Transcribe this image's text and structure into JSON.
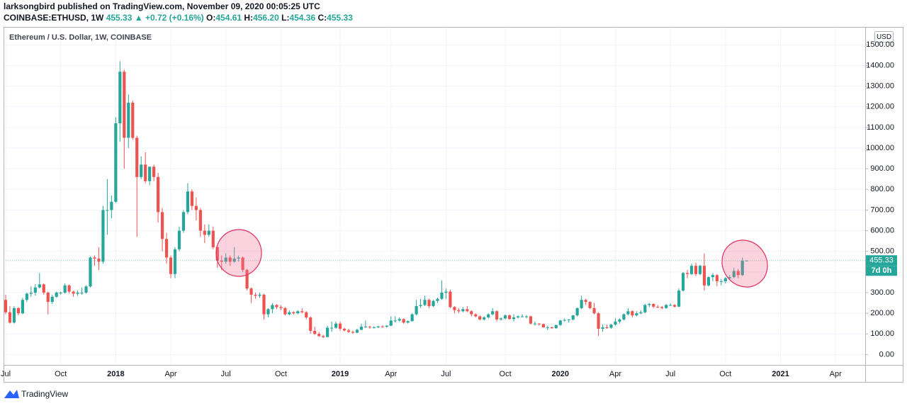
{
  "header": {
    "byline": "larksongbird published on TradingView.com, November 09, 2020 00:05:25 UTC",
    "symbol": "COINBASE:ETHUSD, 1W",
    "price": "455.33",
    "change": "▲ +0.72 (+0.16%)",
    "ohlc_labels": [
      "O:",
      "H:",
      "L:",
      "C:"
    ],
    "ohlc_values": [
      "454.61",
      "456.20",
      "454.36",
      "455.33"
    ]
  },
  "footer": {
    "brand": "TradingView"
  },
  "chart_data": {
    "type": "candlestick",
    "title": "Ethereum / U.S. Dollar, 1W, COINBASE",
    "currency": "USD",
    "countdown": "7d 0h",
    "up_color": "#26a69a",
    "down_color": "#ef5350",
    "grid": true,
    "ylim": [
      -50,
      1580
    ],
    "yticks": [
      {
        "value": 0,
        "label": "0.00"
      },
      {
        "value": 100,
        "label": "100.00"
      },
      {
        "value": 200,
        "label": "200.00"
      },
      {
        "value": 300,
        "label": "300.00"
      },
      {
        "value": 400,
        "label": "400.00"
      },
      {
        "value": 500,
        "label": "500.00"
      },
      {
        "value": 600,
        "label": "600.00"
      },
      {
        "value": 700,
        "label": "700.00"
      },
      {
        "value": 800,
        "label": "800.00"
      },
      {
        "value": 900,
        "label": "900.00"
      },
      {
        "value": 1000,
        "label": "1000.00"
      },
      {
        "value": 1100,
        "label": "1100.00"
      },
      {
        "value": 1200,
        "label": "1200.00"
      },
      {
        "value": 1300,
        "label": "1300.00"
      },
      {
        "value": 1400,
        "label": "1400.00"
      },
      {
        "value": 1500,
        "label": "1500.00"
      }
    ],
    "xlim": [
      -0.5,
      203
    ],
    "xticks": [
      {
        "value": 0,
        "label": "Jul"
      },
      {
        "value": 13,
        "label": "Oct"
      },
      {
        "value": 26,
        "label": "2018"
      },
      {
        "value": 39,
        "label": "Apr"
      },
      {
        "value": 52,
        "label": "Jul"
      },
      {
        "value": 65,
        "label": "Oct"
      },
      {
        "value": 79,
        "label": "2019"
      },
      {
        "value": 91,
        "label": "Apr"
      },
      {
        "value": 104,
        "label": "Jul"
      },
      {
        "value": 118,
        "label": "Oct"
      },
      {
        "value": 131,
        "label": "2020"
      },
      {
        "value": 144,
        "label": "Apr"
      },
      {
        "value": 157,
        "label": "Jul"
      },
      {
        "value": 170,
        "label": "Oct"
      },
      {
        "value": 183,
        "label": "2021"
      },
      {
        "value": 196,
        "label": "Apr"
      }
    ],
    "ohlc": [
      [
        265,
        290,
        195,
        205
      ],
      [
        205,
        235,
        150,
        155
      ],
      [
        155,
        235,
        150,
        225
      ],
      [
        225,
        230,
        190,
        200
      ],
      [
        200,
        275,
        195,
        265
      ],
      [
        265,
        300,
        255,
        295
      ],
      [
        295,
        330,
        280,
        300
      ],
      [
        300,
        340,
        285,
        325
      ],
      [
        325,
        395,
        320,
        340
      ],
      [
        340,
        345,
        290,
        300
      ],
      [
        300,
        305,
        195,
        255
      ],
      [
        255,
        290,
        245,
        280
      ],
      [
        280,
        305,
        275,
        300
      ],
      [
        300,
        305,
        290,
        300
      ],
      [
        300,
        345,
        295,
        335
      ],
      [
        335,
        340,
        295,
        305
      ],
      [
        305,
        310,
        280,
        295
      ],
      [
        295,
        310,
        285,
        300
      ],
      [
        300,
        325,
        290,
        300
      ],
      [
        300,
        335,
        295,
        330
      ],
      [
        330,
        475,
        325,
        470
      ],
      [
        470,
        480,
        430,
        465
      ],
      [
        465,
        520,
        410,
        450
      ],
      [
        450,
        720,
        440,
        700
      ],
      [
        700,
        850,
        580,
        700
      ],
      [
        700,
        770,
        660,
        740
      ],
      [
        740,
        1150,
        735,
        1120
      ],
      [
        1120,
        1420,
        1030,
        1370
      ],
      [
        1370,
        1380,
        900,
        1050
      ],
      [
        1050,
        1260,
        1000,
        1220
      ],
      [
        1220,
        1230,
        1040,
        1050
      ],
      [
        1050,
        1060,
        570,
        860
      ],
      [
        860,
        960,
        850,
        920
      ],
      [
        920,
        980,
        830,
        840
      ],
      [
        840,
        900,
        820,
        910
      ],
      [
        910,
        920,
        840,
        860
      ],
      [
        860,
        880,
        640,
        690
      ],
      [
        690,
        710,
        500,
        560
      ],
      [
        560,
        590,
        440,
        470
      ],
      [
        470,
        480,
        370,
        390
      ],
      [
        390,
        520,
        370,
        510
      ],
      [
        510,
        620,
        500,
        600
      ],
      [
        600,
        700,
        590,
        690
      ],
      [
        690,
        830,
        680,
        790
      ],
      [
        790,
        800,
        700,
        720
      ],
      [
        720,
        760,
        650,
        700
      ],
      [
        700,
        710,
        570,
        600
      ],
      [
        600,
        630,
        540,
        580
      ],
      [
        580,
        630,
        570,
        600
      ],
      [
        600,
        620,
        510,
        520
      ],
      [
        520,
        525,
        420,
        455
      ],
      [
        455,
        480,
        410,
        450
      ],
      [
        450,
        490,
        440,
        470
      ],
      [
        470,
        480,
        430,
        450
      ],
      [
        450,
        520,
        445,
        465
      ],
      [
        465,
        480,
        450,
        470
      ],
      [
        470,
        475,
        400,
        410
      ],
      [
        410,
        415,
        310,
        320
      ],
      [
        320,
        325,
        250,
        290
      ],
      [
        290,
        300,
        270,
        285
      ],
      [
        285,
        300,
        275,
        290
      ],
      [
        290,
        295,
        170,
        195
      ],
      [
        195,
        225,
        180,
        220
      ],
      [
        220,
        250,
        200,
        240
      ],
      [
        240,
        245,
        220,
        230
      ],
      [
        230,
        240,
        215,
        225
      ],
      [
        225,
        230,
        190,
        195
      ],
      [
        195,
        215,
        190,
        205
      ],
      [
        205,
        210,
        195,
        200
      ],
      [
        200,
        215,
        195,
        210
      ],
      [
        210,
        225,
        200,
        205
      ],
      [
        205,
        210,
        170,
        180
      ],
      [
        180,
        185,
        100,
        115
      ],
      [
        115,
        135,
        95,
        100
      ],
      [
        100,
        110,
        85,
        90
      ],
      [
        90,
        95,
        80,
        85
      ],
      [
        85,
        140,
        84,
        130
      ],
      [
        130,
        160,
        110,
        130
      ],
      [
        130,
        160,
        125,
        150
      ],
      [
        150,
        160,
        115,
        125
      ],
      [
        125,
        130,
        112,
        117
      ],
      [
        117,
        125,
        105,
        110
      ],
      [
        110,
        115,
        100,
        106
      ],
      [
        106,
        125,
        104,
        120
      ],
      [
        120,
        150,
        118,
        135
      ],
      [
        135,
        165,
        130,
        135
      ],
      [
        135,
        140,
        125,
        132
      ],
      [
        132,
        138,
        126,
        132
      ],
      [
        132,
        140,
        128,
        136
      ],
      [
        136,
        142,
        130,
        135
      ],
      [
        135,
        142,
        130,
        140
      ],
      [
        140,
        185,
        138,
        165
      ],
      [
        165,
        185,
        155,
        165
      ],
      [
        165,
        180,
        160,
        172
      ],
      [
        172,
        175,
        150,
        155
      ],
      [
        155,
        165,
        150,
        162
      ],
      [
        162,
        200,
        160,
        195
      ],
      [
        195,
        265,
        190,
        235
      ],
      [
        235,
        270,
        225,
        240
      ],
      [
        240,
        285,
        235,
        265
      ],
      [
        265,
        270,
        225,
        235
      ],
      [
        235,
        265,
        230,
        260
      ],
      [
        260,
        275,
        250,
        270
      ],
      [
        270,
        360,
        265,
        300
      ],
      [
        300,
        320,
        270,
        305
      ],
      [
        305,
        315,
        225,
        230
      ],
      [
        230,
        235,
        200,
        215
      ],
      [
        215,
        225,
        200,
        210
      ],
      [
        210,
        230,
        205,
        220
      ],
      [
        220,
        235,
        205,
        210
      ],
      [
        210,
        215,
        185,
        195
      ],
      [
        195,
        200,
        180,
        185
      ],
      [
        185,
        190,
        165,
        170
      ],
      [
        170,
        185,
        165,
        180
      ],
      [
        180,
        200,
        175,
        195
      ],
      [
        195,
        225,
        190,
        210
      ],
      [
        210,
        215,
        160,
        170
      ],
      [
        170,
        180,
        165,
        175
      ],
      [
        175,
        195,
        170,
        190
      ],
      [
        190,
        195,
        170,
        172
      ],
      [
        172,
        195,
        160,
        180
      ],
      [
        180,
        190,
        175,
        185
      ],
      [
        185,
        195,
        180,
        185
      ],
      [
        185,
        190,
        175,
        185
      ],
      [
        185,
        188,
        145,
        150
      ],
      [
        150,
        160,
        140,
        150
      ],
      [
        150,
        152,
        140,
        148
      ],
      [
        148,
        150,
        130,
        132
      ],
      [
        132,
        140,
        118,
        132
      ],
      [
        132,
        135,
        125,
        128
      ],
      [
        128,
        145,
        125,
        143
      ],
      [
        143,
        168,
        140,
        165
      ],
      [
        165,
        175,
        160,
        168
      ],
      [
        168,
        172,
        155,
        170
      ],
      [
        170,
        192,
        165,
        190
      ],
      [
        190,
        228,
        185,
        225
      ],
      [
        225,
        285,
        220,
        265
      ],
      [
        265,
        270,
        240,
        255
      ],
      [
        255,
        258,
        220,
        225
      ],
      [
        225,
        250,
        195,
        200
      ],
      [
        200,
        205,
        90,
        125
      ],
      [
        125,
        145,
        110,
        132
      ],
      [
        132,
        145,
        125,
        130
      ],
      [
        130,
        148,
        125,
        145
      ],
      [
        145,
        175,
        140,
        160
      ],
      [
        160,
        175,
        150,
        170
      ],
      [
        170,
        200,
        165,
        195
      ],
      [
        195,
        225,
        190,
        210
      ],
      [
        210,
        215,
        180,
        190
      ],
      [
        190,
        210,
        185,
        200
      ],
      [
        200,
        215,
        195,
        205
      ],
      [
        205,
        245,
        200,
        240
      ],
      [
        240,
        250,
        230,
        245
      ],
      [
        245,
        248,
        225,
        232
      ],
      [
        232,
        240,
        225,
        230
      ],
      [
        230,
        235,
        220,
        225
      ],
      [
        225,
        245,
        222,
        240
      ],
      [
        240,
        248,
        235,
        240
      ],
      [
        240,
        245,
        228,
        232
      ],
      [
        232,
        320,
        230,
        310
      ],
      [
        310,
        400,
        305,
        395
      ],
      [
        395,
        410,
        370,
        390
      ],
      [
        390,
        440,
        385,
        430
      ],
      [
        430,
        445,
        380,
        390
      ],
      [
        390,
        435,
        385,
        430
      ],
      [
        430,
        490,
        310,
        335
      ],
      [
        335,
        380,
        330,
        375
      ],
      [
        375,
        395,
        355,
        385
      ],
      [
        385,
        390,
        330,
        355
      ],
      [
        355,
        365,
        335,
        355
      ],
      [
        355,
        375,
        345,
        370
      ],
      [
        370,
        385,
        360,
        375
      ],
      [
        375,
        420,
        370,
        405
      ],
      [
        405,
        415,
        370,
        385
      ],
      [
        385,
        470,
        380,
        454.61
      ],
      [
        454.61,
        456.2,
        454.36,
        455.33
      ]
    ]
  }
}
